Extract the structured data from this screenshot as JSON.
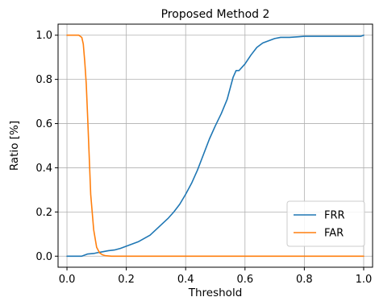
{
  "chart_data": {
    "type": "line",
    "title": "Proposed Method 2",
    "xlabel": "Threshold",
    "ylabel": "Ratio [%]",
    "xlim": [
      -0.03,
      1.03
    ],
    "ylim": [
      -0.05,
      1.05
    ],
    "xticks": [
      0.0,
      0.2,
      0.4,
      0.6,
      0.8,
      1.0
    ],
    "xtick_labels": [
      "0.0",
      "0.2",
      "0.4",
      "0.6",
      "0.8",
      "1.0"
    ],
    "yticks": [
      0.0,
      0.2,
      0.4,
      0.6,
      0.8,
      1.0
    ],
    "ytick_labels": [
      "0.0",
      "0.2",
      "0.4",
      "0.6",
      "0.8",
      "1.0"
    ],
    "grid": true,
    "legend_position": "lower-right",
    "series": [
      {
        "name": "FRR",
        "color": "#1f77b4",
        "x": [
          0.0,
          0.05,
          0.07,
          0.09,
          0.1,
          0.12,
          0.14,
          0.16,
          0.18,
          0.2,
          0.22,
          0.24,
          0.26,
          0.28,
          0.3,
          0.32,
          0.34,
          0.36,
          0.38,
          0.4,
          0.42,
          0.44,
          0.46,
          0.48,
          0.5,
          0.52,
          0.54,
          0.56,
          0.57,
          0.58,
          0.6,
          0.62,
          0.64,
          0.66,
          0.68,
          0.7,
          0.72,
          0.75,
          0.78,
          0.8,
          0.85,
          0.9,
          0.95,
          0.99,
          1.0
        ],
        "y": [
          0.0,
          0.0,
          0.01,
          0.012,
          0.015,
          0.02,
          0.025,
          0.028,
          0.035,
          0.045,
          0.055,
          0.065,
          0.08,
          0.095,
          0.12,
          0.145,
          0.17,
          0.2,
          0.235,
          0.28,
          0.33,
          0.39,
          0.46,
          0.53,
          0.59,
          0.645,
          0.71,
          0.81,
          0.84,
          0.84,
          0.87,
          0.91,
          0.945,
          0.965,
          0.975,
          0.985,
          0.99,
          0.99,
          0.993,
          0.995,
          0.995,
          0.995,
          0.995,
          0.995,
          1.0
        ]
      },
      {
        "name": "FAR",
        "color": "#ff7f0e",
        "x": [
          0.0,
          0.04,
          0.05,
          0.055,
          0.06,
          0.065,
          0.07,
          0.08,
          0.09,
          0.1,
          0.11,
          0.12,
          0.13,
          0.15,
          0.2,
          0.4,
          0.6,
          0.8,
          1.0
        ],
        "y": [
          1.0,
          1.0,
          0.99,
          0.96,
          0.88,
          0.78,
          0.62,
          0.28,
          0.12,
          0.04,
          0.015,
          0.006,
          0.002,
          0.0,
          0.0,
          0.0,
          0.0,
          0.0,
          0.0
        ]
      }
    ]
  }
}
